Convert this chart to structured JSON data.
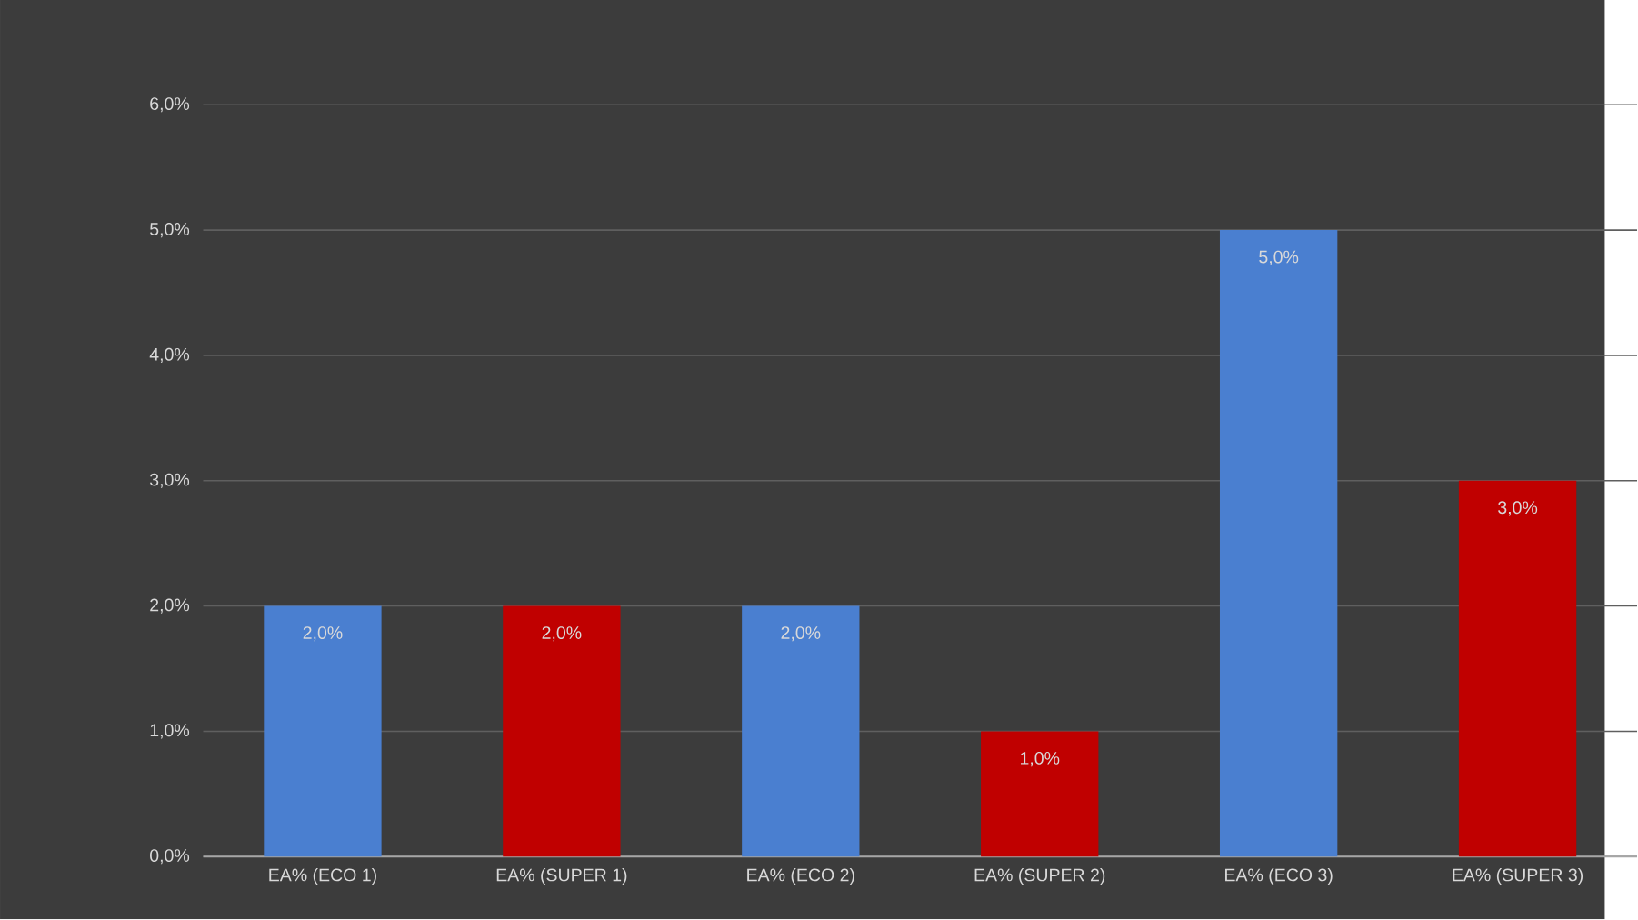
{
  "chart_data": {
    "type": "bar",
    "categories": [
      "EA% (ECO 1)",
      "EA% (SUPER 1)",
      "EA% (ECO 2)",
      "EA% (SUPER 2)",
      "EA% (ECO 3)",
      "EA% (SUPER 3)"
    ],
    "values": [
      2,
      2,
      2,
      1,
      5,
      3
    ],
    "colors": [
      "#4a7fd0",
      "#c00000",
      "#4a7fd0",
      "#c00000",
      "#4a7fd0",
      "#c00000"
    ],
    "value_labels": [
      "2,0%",
      "2,0%",
      "2,0%",
      "1,0%",
      "5,0%",
      "3,0%"
    ],
    "ylim": [
      0,
      6
    ],
    "yticks": [
      {
        "value": 0,
        "label": "0,0%"
      },
      {
        "value": 1,
        "label": "1,0%"
      },
      {
        "value": 2,
        "label": "2,0%"
      },
      {
        "value": 3,
        "label": "3,0%"
      },
      {
        "value": 4,
        "label": "4,0%"
      },
      {
        "value": 5,
        "label": "5,0%"
      },
      {
        "value": 6,
        "label": "6,0%"
      }
    ],
    "grid": "y"
  }
}
